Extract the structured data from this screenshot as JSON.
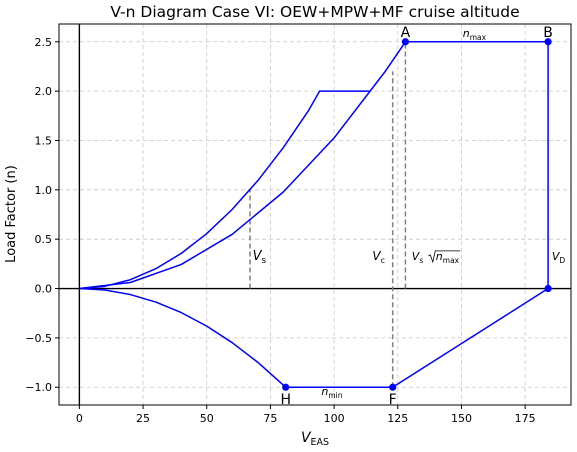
{
  "chart_data": {
    "type": "line",
    "title": "V-n Diagram Case VI: OEW+MPW+MF cruise altitude",
    "xlabel": "V",
    "xlabel_sub": "EAS",
    "ylabel": "Load Factor (n)",
    "xlim": [
      -8,
      193
    ],
    "ylim": [
      -1.18,
      2.68
    ],
    "xticks": [
      0,
      25,
      50,
      75,
      100,
      125,
      150,
      175
    ],
    "xtick_labels": [
      "0",
      "25",
      "50",
      "75",
      "100",
      "125",
      "150",
      "175"
    ],
    "yticks": [
      -1.0,
      -0.5,
      0.0,
      0.5,
      1.0,
      1.5,
      2.0,
      2.5
    ],
    "ytick_labels": [
      "−1.0",
      "−0.5",
      "0.0",
      "0.5",
      "1.0",
      "1.5",
      "2.0",
      "2.5"
    ],
    "grid": true,
    "line_color": "#0000ff",
    "dashed_color": "#808080",
    "params": {
      "Vs": 67,
      "Vc": 123,
      "VA": 128,
      "VD": 184,
      "VH": 81,
      "nmax": 2.5,
      "nmin": -1.0
    },
    "series": [
      {
        "kind": "stall-upper",
        "x": [
          0,
          10,
          20,
          30,
          40,
          50,
          60,
          70,
          80,
          90,
          94.3,
          114.5
        ],
        "y": [
          0,
          0.0223,
          0.0891,
          0.2005,
          0.3564,
          0.5569,
          0.802,
          1.0916,
          1.4257,
          1.8044,
          2.0,
          2.0
        ]
      },
      {
        "kind": "stall-lower-to-A",
        "x": [
          0,
          20,
          40,
          60,
          80,
          100,
          120,
          128
        ],
        "y": [
          0,
          0.061,
          0.2441,
          0.5493,
          0.9766,
          1.5259,
          2.1973,
          2.5
        ]
      },
      {
        "kind": "envelope-positive",
        "x": [
          128,
          184,
          184
        ],
        "y": [
          2.5,
          2.5,
          0.0
        ]
      },
      {
        "kind": "negative-stall",
        "x": [
          0,
          10,
          20,
          30,
          40,
          50,
          60,
          70,
          81
        ],
        "y": [
          0,
          -0.0152,
          -0.061,
          -0.1372,
          -0.2439,
          -0.381,
          -0.5487,
          -0.7468,
          -1.0
        ]
      },
      {
        "kind": "envelope-negative",
        "x": [
          81,
          123,
          184
        ],
        "y": [
          -1.0,
          -1.0,
          0.0
        ]
      }
    ],
    "points": [
      {
        "x": 128,
        "y": 2.5,
        "label": "A"
      },
      {
        "x": 184,
        "y": 2.5,
        "label": "B"
      },
      {
        "x": 184,
        "y": 0.0,
        "label": ""
      },
      {
        "x": 123,
        "y": -1.0,
        "label": "F"
      },
      {
        "x": 81,
        "y": -1.0,
        "label": "H"
      }
    ],
    "vlines": [
      {
        "x": 67,
        "y0": 0,
        "y1": 1.0
      },
      {
        "x": 123,
        "y0": -1.0,
        "y1": 2.2
      },
      {
        "x": 128,
        "y0": 0,
        "y1": 2.5
      }
    ],
    "annotations": {
      "vs": {
        "main": "V",
        "sub": "s",
        "x": 68,
        "y": 0.29
      },
      "vc": {
        "main": "V",
        "sub": "c",
        "x": 115,
        "y": 0.29
      },
      "vsqrt": {
        "main": "V",
        "sub": "s",
        "rad_main": "n",
        "rad_sub": "max",
        "x": 130.5,
        "y": 0.29
      },
      "vd": {
        "main": "V",
        "sub": "D",
        "x": 185.5,
        "y": 0.29
      },
      "nmax": {
        "main": "n",
        "sub": "max",
        "x": 150.5,
        "y": 2.55
      },
      "nmin": {
        "main": "n",
        "sub": "min",
        "x": 95,
        "y": -1.08
      }
    }
  }
}
